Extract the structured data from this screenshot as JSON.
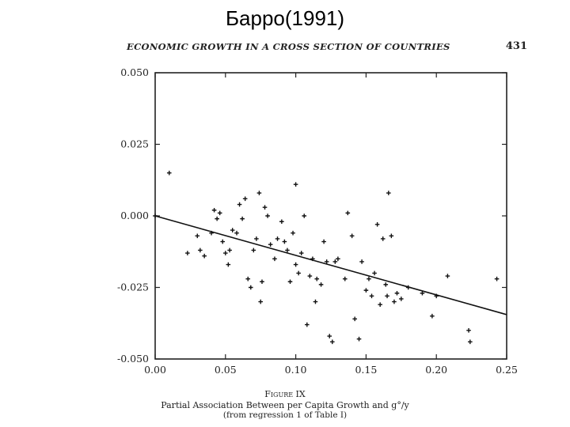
{
  "slide": {
    "title": "Барро(1991)"
  },
  "page_header": {
    "running_head": "ECONOMIC GROWTH IN A CROSS SECTION OF COUNTRIES",
    "page_number": "431"
  },
  "caption": {
    "figure_label": "Figure IX",
    "title": "Partial Association Between per Capita Growth and g°/y",
    "note": "(from regression 1 of Table I)"
  },
  "chart_data": {
    "type": "scatter",
    "title": "",
    "xlabel": "",
    "ylabel": "",
    "xlim": [
      0.0,
      0.25
    ],
    "ylim": [
      -0.05,
      0.05
    ],
    "x_ticks": [
      "0.00",
      "0.05",
      "0.10",
      "0.15",
      "0.20",
      "0.25"
    ],
    "y_ticks": [
      "0.050",
      "0.025",
      "0.000",
      "-0.025",
      "-0.050"
    ],
    "grid": false,
    "marker": "plus",
    "fit_line": {
      "x": [
        0.0,
        0.25
      ],
      "y": [
        0.0,
        -0.0345
      ]
    },
    "series": [
      {
        "points": [
          [
            0.0,
            0.0
          ],
          [
            0.01,
            0.015
          ],
          [
            0.023,
            -0.013
          ],
          [
            0.03,
            -0.007
          ],
          [
            0.032,
            -0.012
          ],
          [
            0.035,
            -0.014
          ],
          [
            0.04,
            -0.006
          ],
          [
            0.042,
            0.002
          ],
          [
            0.044,
            -0.001
          ],
          [
            0.046,
            0.001
          ],
          [
            0.048,
            -0.009
          ],
          [
            0.05,
            -0.013
          ],
          [
            0.052,
            -0.017
          ],
          [
            0.053,
            -0.012
          ],
          [
            0.055,
            -0.005
          ],
          [
            0.058,
            -0.006
          ],
          [
            0.06,
            0.004
          ],
          [
            0.062,
            -0.001
          ],
          [
            0.064,
            0.006
          ],
          [
            0.066,
            -0.022
          ],
          [
            0.068,
            -0.025
          ],
          [
            0.07,
            -0.012
          ],
          [
            0.072,
            -0.008
          ],
          [
            0.074,
            0.008
          ],
          [
            0.075,
            -0.03
          ],
          [
            0.076,
            -0.023
          ],
          [
            0.078,
            0.003
          ],
          [
            0.08,
            0.0
          ],
          [
            0.082,
            -0.01
          ],
          [
            0.085,
            -0.015
          ],
          [
            0.087,
            -0.008
          ],
          [
            0.09,
            -0.002
          ],
          [
            0.092,
            -0.009
          ],
          [
            0.094,
            -0.012
          ],
          [
            0.096,
            -0.023
          ],
          [
            0.098,
            -0.006
          ],
          [
            0.1,
            0.011
          ],
          [
            0.1,
            -0.017
          ],
          [
            0.102,
            -0.02
          ],
          [
            0.104,
            -0.013
          ],
          [
            0.106,
            0.0
          ],
          [
            0.108,
            -0.038
          ],
          [
            0.11,
            -0.021
          ],
          [
            0.112,
            -0.015
          ],
          [
            0.114,
            -0.03
          ],
          [
            0.115,
            -0.022
          ],
          [
            0.118,
            -0.024
          ],
          [
            0.12,
            -0.009
          ],
          [
            0.122,
            -0.016
          ],
          [
            0.124,
            -0.042
          ],
          [
            0.126,
            -0.044
          ],
          [
            0.128,
            -0.016
          ],
          [
            0.13,
            -0.015
          ],
          [
            0.135,
            -0.022
          ],
          [
            0.137,
            0.001
          ],
          [
            0.14,
            -0.007
          ],
          [
            0.142,
            -0.036
          ],
          [
            0.145,
            -0.043
          ],
          [
            0.147,
            -0.016
          ],
          [
            0.15,
            -0.026
          ],
          [
            0.152,
            -0.022
          ],
          [
            0.154,
            -0.028
          ],
          [
            0.156,
            -0.02
          ],
          [
            0.158,
            -0.003
          ],
          [
            0.16,
            -0.031
          ],
          [
            0.162,
            -0.008
          ],
          [
            0.164,
            -0.024
          ],
          [
            0.165,
            -0.028
          ],
          [
            0.166,
            0.008
          ],
          [
            0.168,
            -0.007
          ],
          [
            0.17,
            -0.03
          ],
          [
            0.172,
            -0.027
          ],
          [
            0.175,
            -0.029
          ],
          [
            0.18,
            -0.025
          ],
          [
            0.19,
            -0.027
          ],
          [
            0.197,
            -0.035
          ],
          [
            0.2,
            -0.028
          ],
          [
            0.208,
            -0.021
          ],
          [
            0.223,
            -0.04
          ],
          [
            0.224,
            -0.044
          ],
          [
            0.243,
            -0.022
          ]
        ]
      }
    ]
  }
}
